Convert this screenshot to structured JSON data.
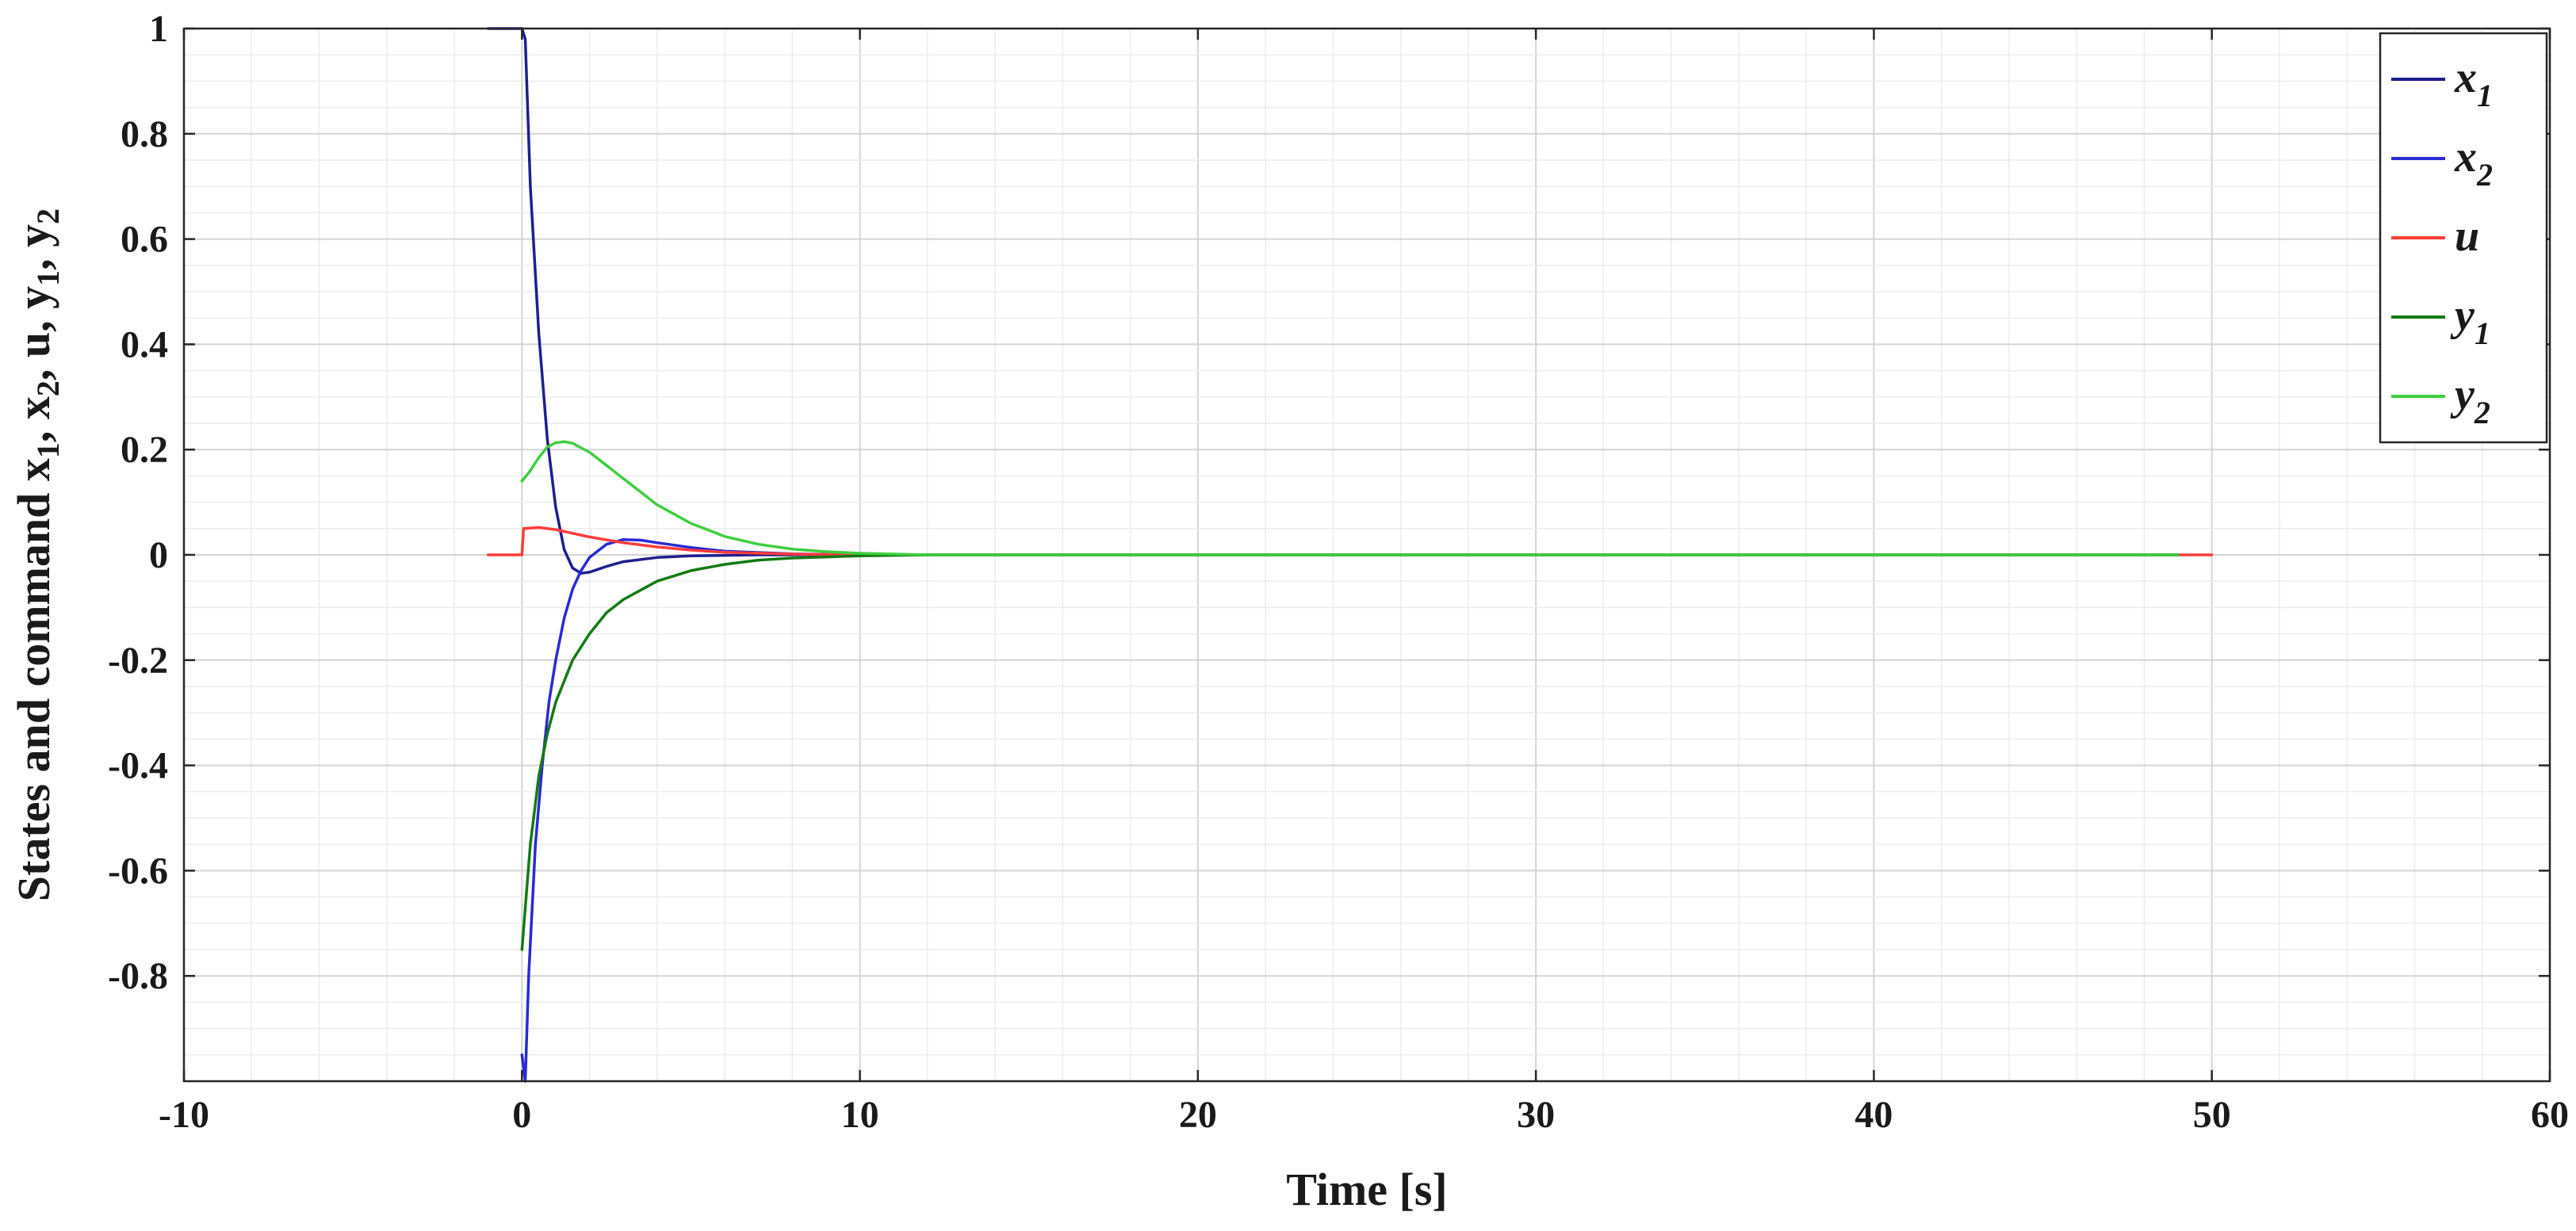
{
  "chart_data": {
    "type": "line",
    "title": "",
    "xlabel": "Time [s]",
    "ylabel": "States and command x",
    "ylabel_parts": [
      {
        "text": "States and command x",
        "sub": false
      },
      {
        "text": "1",
        "sub": true
      },
      {
        "text": ", x",
        "sub": false
      },
      {
        "text": "2",
        "sub": true
      },
      {
        "text": ", u, y",
        "sub": false
      },
      {
        "text": "1",
        "sub": true
      },
      {
        "text": ", y",
        "sub": false
      },
      {
        "text": "2",
        "sub": true
      }
    ],
    "xlim": [
      -10,
      60
    ],
    "ylim": [
      -1,
      1
    ],
    "xticks": [
      "-10",
      "0",
      "10",
      "20",
      "30",
      "40",
      "50",
      "60"
    ],
    "yticks": [
      "1",
      "0.8",
      "0.6",
      "0.4",
      "0.2",
      "0",
      "-0.2",
      "-0.4",
      "-0.6",
      "-0.8"
    ],
    "grid": true,
    "minor_grid": true,
    "legend_position": "top-right",
    "series": [
      {
        "name": "x",
        "sub": "1",
        "color": "#1f1f8f",
        "points": [
          [
            -1,
            1
          ],
          [
            0,
            1
          ],
          [
            0.1,
            0.98
          ],
          [
            0.25,
            0.7
          ],
          [
            0.5,
            0.42
          ],
          [
            0.75,
            0.22
          ],
          [
            1,
            0.09
          ],
          [
            1.25,
            0.01
          ],
          [
            1.5,
            -0.025
          ],
          [
            1.75,
            -0.035
          ],
          [
            2,
            -0.033
          ],
          [
            2.5,
            -0.022
          ],
          [
            3,
            -0.013
          ],
          [
            4,
            -0.005
          ],
          [
            5,
            -0.002
          ],
          [
            7,
            0
          ],
          [
            10,
            0
          ],
          [
            49,
            0
          ]
        ]
      },
      {
        "name": "x",
        "sub": "2",
        "color": "#2a2ad4",
        "points": [
          [
            0,
            -0.95
          ],
          [
            0.1,
            -1
          ],
          [
            0.2,
            -0.8
          ],
          [
            0.4,
            -0.55
          ],
          [
            0.6,
            -0.4
          ],
          [
            0.8,
            -0.28
          ],
          [
            1,
            -0.2
          ],
          [
            1.25,
            -0.12
          ],
          [
            1.5,
            -0.065
          ],
          [
            1.75,
            -0.03
          ],
          [
            2,
            -0.005
          ],
          [
            2.5,
            0.02
          ],
          [
            3,
            0.029
          ],
          [
            3.5,
            0.028
          ],
          [
            4,
            0.023
          ],
          [
            5,
            0.014
          ],
          [
            6,
            0.007
          ],
          [
            8,
            0.002
          ],
          [
            10,
            0
          ],
          [
            49,
            0
          ]
        ]
      },
      {
        "name": "u",
        "sub": "",
        "color": "#ff3b3b",
        "points": [
          [
            -1,
            0
          ],
          [
            0,
            0
          ],
          [
            0.05,
            0.05
          ],
          [
            0.5,
            0.052
          ],
          [
            1,
            0.048
          ],
          [
            1.5,
            0.041
          ],
          [
            2,
            0.034
          ],
          [
            3,
            0.023
          ],
          [
            4,
            0.015
          ],
          [
            5,
            0.009
          ],
          [
            6,
            0.005
          ],
          [
            8,
            0.0015
          ],
          [
            10,
            0
          ],
          [
            50,
            0
          ]
        ]
      },
      {
        "name": "y",
        "sub": "1",
        "color": "#137a13",
        "points": [
          [
            0,
            -0.75
          ],
          [
            0.25,
            -0.55
          ],
          [
            0.5,
            -0.42
          ],
          [
            0.75,
            -0.34
          ],
          [
            1,
            -0.28
          ],
          [
            1.5,
            -0.2
          ],
          [
            2,
            -0.15
          ],
          [
            2.5,
            -0.11
          ],
          [
            3,
            -0.085
          ],
          [
            4,
            -0.05
          ],
          [
            5,
            -0.03
          ],
          [
            6,
            -0.018
          ],
          [
            7,
            -0.01
          ],
          [
            8,
            -0.006
          ],
          [
            10,
            -0.002
          ],
          [
            12,
            0
          ],
          [
            49,
            0
          ]
        ]
      },
      {
        "name": "y",
        "sub": "2",
        "color": "#3fcf3f",
        "points": [
          [
            0,
            0.14
          ],
          [
            0.25,
            0.16
          ],
          [
            0.5,
            0.185
          ],
          [
            0.75,
            0.205
          ],
          [
            1,
            0.213
          ],
          [
            1.25,
            0.215
          ],
          [
            1.5,
            0.212
          ],
          [
            2,
            0.195
          ],
          [
            2.5,
            0.17
          ],
          [
            3,
            0.145
          ],
          [
            3.5,
            0.12
          ],
          [
            4,
            0.095
          ],
          [
            5,
            0.06
          ],
          [
            6,
            0.035
          ],
          [
            7,
            0.02
          ],
          [
            8,
            0.011
          ],
          [
            9,
            0.006
          ],
          [
            10,
            0.003
          ],
          [
            12,
            0
          ],
          [
            49,
            0
          ]
        ]
      }
    ]
  }
}
